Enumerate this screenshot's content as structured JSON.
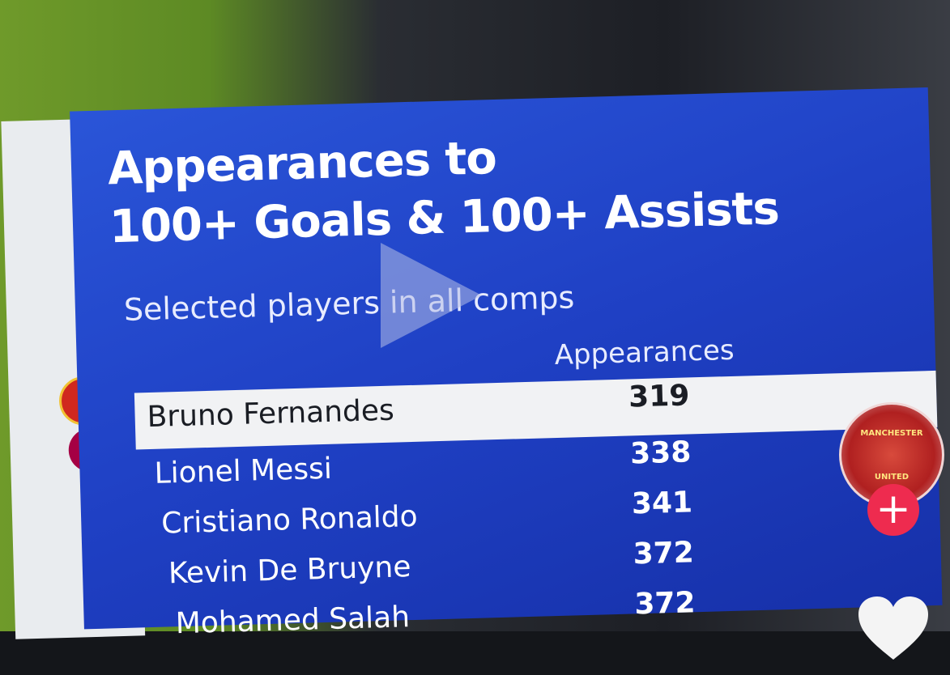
{
  "graphic": {
    "title_lines": [
      "Appearances to",
      "100+ Goals & 100+ Assists"
    ],
    "subtitle": "Selected players in all comps",
    "column_header": "Appearances",
    "rows": [
      [
        "Bruno Fernandes",
        319
      ],
      [
        "Lionel Messi",
        338
      ],
      [
        "Cristiano Ronaldo",
        341
      ],
      [
        "Kevin De Bruyne",
        372
      ],
      [
        "Mohamed Salah",
        372
      ]
    ]
  },
  "avatar": {
    "label_top": "MANCHESTER",
    "label_bottom": "UNITED"
  }
}
